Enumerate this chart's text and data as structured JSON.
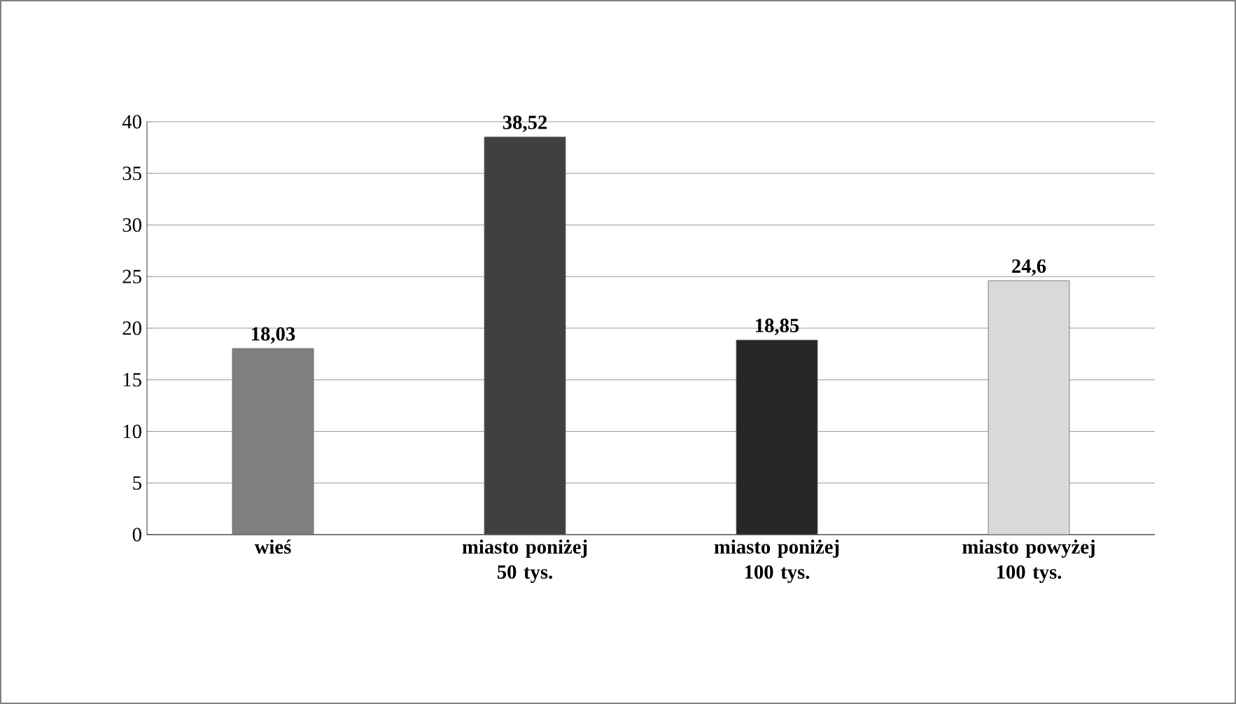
{
  "chart_data": {
    "type": "bar",
    "categories": [
      "wieś",
      "miasto poniżej 50 tys.",
      "miasto poniżej 100 tys.",
      "miasto powyżej 100 tys."
    ],
    "values": [
      18.03,
      38.52,
      18.85,
      24.6
    ],
    "colors": [
      "#7f7f7f",
      "#404040",
      "#262626",
      "#d9d9d9"
    ],
    "value_labels": [
      "18,03",
      "38,52",
      "18,85",
      "24,6"
    ],
    "ylim": [
      0,
      40
    ],
    "yticks": [
      0,
      5,
      10,
      15,
      20,
      25,
      30,
      35,
      40
    ],
    "grid": "y"
  }
}
